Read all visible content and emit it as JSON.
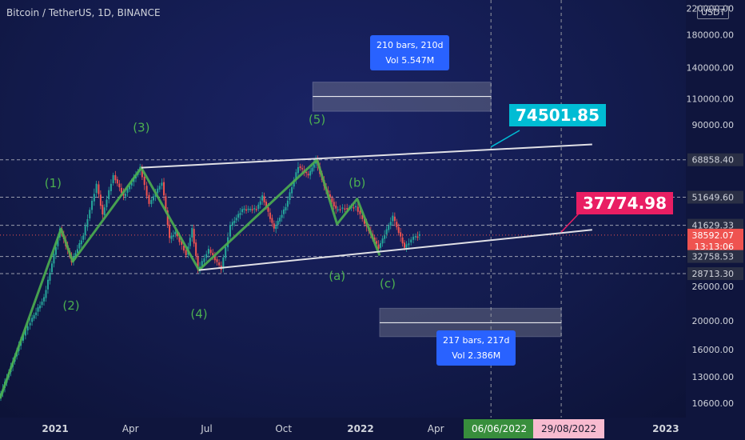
{
  "title": "Bitcoin / TetherUS, 1D, BINANCE",
  "currency": "USDT",
  "colors": {
    "up": "#26a69a",
    "down": "#ef5350",
    "wave": "#4caf50",
    "cyan_label": "#00bcd4",
    "pink_label": "#e91e63",
    "measure": "#2962ff",
    "date_green": "#388e3c",
    "date_pink": "#f8bbd0"
  },
  "annotations": {
    "target_high": "74501.85",
    "target_low": "37774.98",
    "measure_top": {
      "line1": "210 bars, 210d",
      "line2": "Vol 5.547M"
    },
    "measure_bottom": {
      "line1": "217 bars, 217d",
      "line2": "Vol 2.386M"
    },
    "date_badges": [
      "06/06/2022",
      "29/08/2022"
    ]
  },
  "chart_data": {
    "type": "line",
    "scale": "log",
    "ylim": [
      9500,
      235000
    ],
    "xlim": [
      "2020-10-27",
      "2023-01-25"
    ],
    "x_ticks": [
      "2021",
      "Apr",
      "Jul",
      "Oct",
      "2022",
      "Apr",
      "2023"
    ],
    "y_ticks": [
      "220000.00",
      "180000.00",
      "140000.00",
      "110000.00",
      "90000.00",
      "68858.40",
      "51649.60",
      "41629.33",
      "38592.07",
      "32758.53",
      "28713.30",
      "26000.00",
      "20000.00",
      "16000.00",
      "13000.00",
      "10600.00"
    ],
    "current_price": "38592.07",
    "countdown": "13:13:06",
    "horizontal_levels": [
      68858.4,
      51649.6,
      41629.33,
      32758.53,
      28713.3
    ],
    "price_path": {
      "dates": [
        "2020-10-27",
        "2020-11-20",
        "2020-12-01",
        "2020-12-20",
        "2021-01-08",
        "2021-01-22",
        "2021-02-05",
        "2021-02-21",
        "2021-02-28",
        "2021-03-13",
        "2021-03-25",
        "2021-04-14",
        "2021-04-25",
        "2021-05-10",
        "2021-05-19",
        "2021-05-26",
        "2021-06-08",
        "2021-06-15",
        "2021-06-22",
        "2021-07-05",
        "2021-07-20",
        "2021-07-31",
        "2021-08-14",
        "2021-08-31",
        "2021-09-07",
        "2021-09-21",
        "2021-10-05",
        "2021-10-20",
        "2021-11-01",
        "2021-11-10",
        "2021-11-20",
        "2021-12-04",
        "2021-12-15",
        "2021-12-28",
        "2022-01-10",
        "2022-01-24",
        "2022-02-10",
        "2022-02-24",
        "2022-03-07",
        "2022-03-14"
      ],
      "values": [
        11000,
        16500,
        19300,
        23800,
        40500,
        31500,
        38500,
        57000,
        45000,
        61200,
        52000,
        64800,
        49000,
        58000,
        37500,
        39500,
        33200,
        40500,
        29500,
        34500,
        29800,
        41500,
        47000,
        47200,
        52000,
        40500,
        48000,
        65500,
        61000,
        68858,
        56000,
        47000,
        47500,
        48000,
        41000,
        35000,
        44500,
        35000,
        38000,
        38592
      ]
    },
    "elliott_waves": [
      {
        "label": "(1)",
        "date": "2021-01-08",
        "price": 40500
      },
      {
        "label": "(2)",
        "date": "2021-01-22",
        "price": 31500
      },
      {
        "label": "(3)",
        "date": "2021-04-14",
        "price": 64800
      },
      {
        "label": "(4)",
        "date": "2021-06-22",
        "price": 29500
      },
      {
        "label": "(5)",
        "date": "2021-11-10",
        "price": 68858
      },
      {
        "label": "(a)",
        "date": "2021-12-04",
        "price": 42000
      },
      {
        "label": "(b)",
        "date": "2021-12-28",
        "price": 51000
      },
      {
        "label": "(c)",
        "date": "2022-01-24",
        "price": 33000
      }
    ],
    "channel": {
      "upper": {
        "from": [
          "2021-04-14",
          64800
        ],
        "to": [
          "2022-10-05",
          77500
        ]
      },
      "lower": {
        "from": [
          "2021-06-22",
          29500
        ],
        "to": [
          "2022-10-05",
          40200
        ]
      }
    }
  }
}
